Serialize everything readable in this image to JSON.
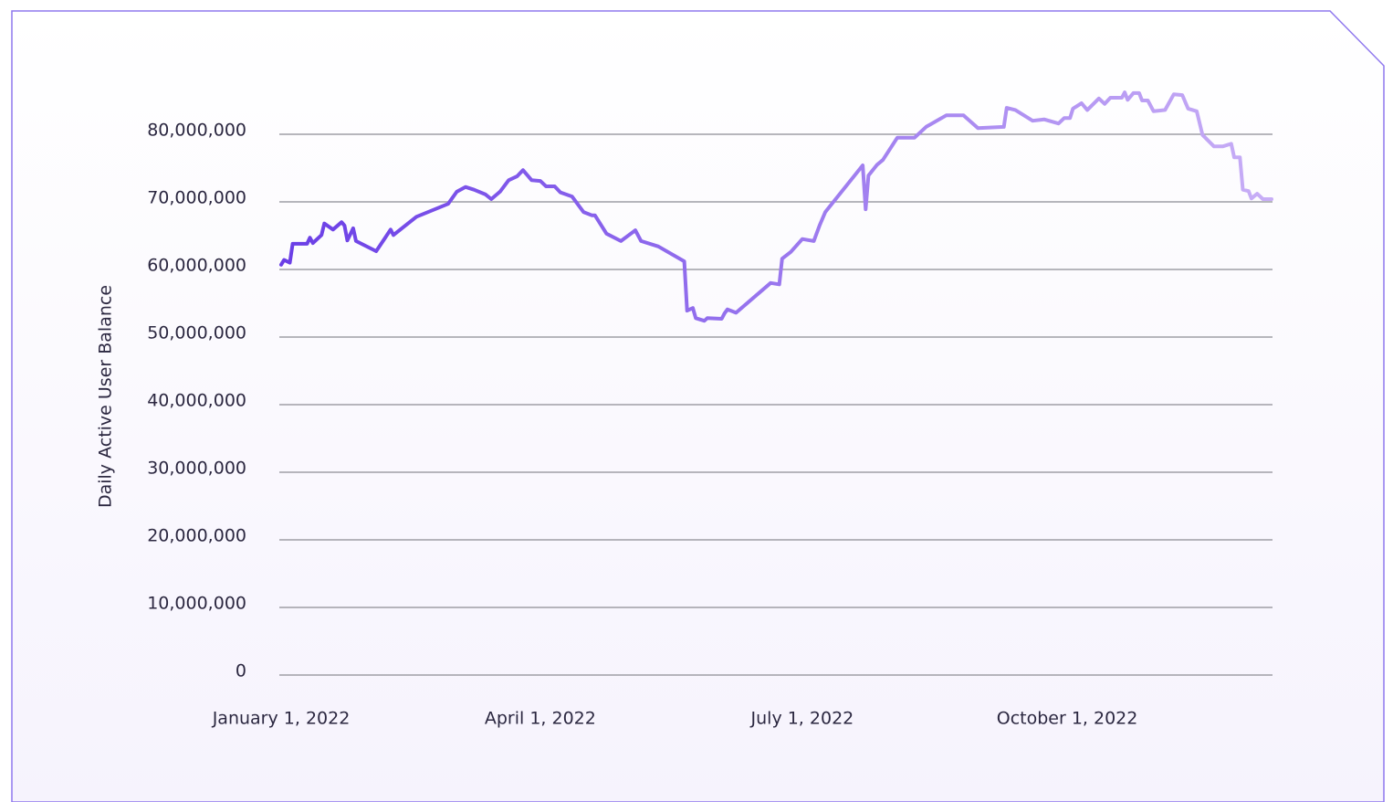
{
  "chart_data": {
    "type": "line",
    "y_label": "Daily Active User Balance",
    "x": [
      "2022-01-01",
      "2022-01-02",
      "2022-01-04",
      "2022-01-05",
      "2022-01-10",
      "2022-01-11",
      "2022-01-12",
      "2022-01-15",
      "2022-01-16",
      "2022-01-19",
      "2022-01-22",
      "2022-01-23",
      "2022-01-24",
      "2022-01-26",
      "2022-01-27",
      "2022-02-03",
      "2022-02-06",
      "2022-02-08",
      "2022-02-09",
      "2022-02-17",
      "2022-02-28",
      "2022-03-03",
      "2022-03-06",
      "2022-03-09",
      "2022-03-13",
      "2022-03-15",
      "2022-03-18",
      "2022-03-21",
      "2022-03-24",
      "2022-03-26",
      "2022-03-29",
      "2022-04-01",
      "2022-04-03",
      "2022-04-06",
      "2022-04-08",
      "2022-04-12",
      "2022-04-16",
      "2022-04-19",
      "2022-04-20",
      "2022-04-24",
      "2022-04-29",
      "2022-05-04",
      "2022-05-06",
      "2022-05-12",
      "2022-05-21",
      "2022-05-22",
      "2022-05-24",
      "2022-05-25",
      "2022-05-28",
      "2022-05-29",
      "2022-06-03",
      "2022-06-04",
      "2022-06-05",
      "2022-06-08",
      "2022-06-20",
      "2022-06-23",
      "2022-06-24",
      "2022-06-27",
      "2022-07-01",
      "2022-07-05",
      "2022-07-07",
      "2022-07-09",
      "2022-07-22",
      "2022-07-23",
      "2022-07-24",
      "2022-07-27",
      "2022-07-29",
      "2022-08-03",
      "2022-08-09",
      "2022-08-13",
      "2022-08-20",
      "2022-08-26",
      "2022-08-31",
      "2022-09-09",
      "2022-09-10",
      "2022-09-13",
      "2022-09-19",
      "2022-09-23",
      "2022-09-28",
      "2022-09-30",
      "2022-10-02",
      "2022-10-03",
      "2022-10-06",
      "2022-10-08",
      "2022-10-12",
      "2022-10-14",
      "2022-10-16",
      "2022-10-20",
      "2022-10-21",
      "2022-10-22",
      "2022-10-24",
      "2022-10-26",
      "2022-10-27",
      "2022-10-29",
      "2022-10-31",
      "2022-11-04",
      "2022-11-07",
      "2022-11-10",
      "2022-11-12",
      "2022-11-15",
      "2022-11-17",
      "2022-11-21",
      "2022-11-24",
      "2022-11-27",
      "2022-11-28",
      "2022-11-30",
      "2022-12-01",
      "2022-12-03",
      "2022-12-04",
      "2022-12-06",
      "2022-12-08",
      "2022-12-11"
    ],
    "series": [
      {
        "color": "#6a3ee6",
        "gradient_end": "#c8aef6",
        "values": [
          60700000,
          61400000,
          61000000,
          63800000,
          63800000,
          64700000,
          63900000,
          65100000,
          66800000,
          65900000,
          67000000,
          66500000,
          64300000,
          66100000,
          64200000,
          62700000,
          64600000,
          65900000,
          65100000,
          67800000,
          69700000,
          71500000,
          72200000,
          71800000,
          71100000,
          70400000,
          71500000,
          73200000,
          73800000,
          74700000,
          73200000,
          73100000,
          72300000,
          72300000,
          71400000,
          70800000,
          68500000,
          68000000,
          68000000,
          65300000,
          64200000,
          65800000,
          64200000,
          63400000,
          61200000,
          53900000,
          54300000,
          52800000,
          52400000,
          52800000,
          52700000,
          53500000,
          54100000,
          53600000,
          58000000,
          57800000,
          61600000,
          62600000,
          64500000,
          64200000,
          66500000,
          68500000,
          75400000,
          68900000,
          73900000,
          75500000,
          76200000,
          79500000,
          79500000,
          81100000,
          82800000,
          82800000,
          80900000,
          81100000,
          83900000,
          83600000,
          82000000,
          82200000,
          81600000,
          82400000,
          82400000,
          83800000,
          84600000,
          83600000,
          85300000,
          84500000,
          85400000,
          85400000,
          86200000,
          85100000,
          86100000,
          86100000,
          85000000,
          85000000,
          83400000,
          83600000,
          85900000,
          85800000,
          83800000,
          83400000,
          79900000,
          78200000,
          78200000,
          78600000,
          76600000,
          76600000,
          71800000,
          71600000,
          70500000,
          71200000,
          70400000,
          70400000
        ]
      }
    ],
    "xlim": [
      "2022-01-01",
      "2022-12-11"
    ],
    "xticks": [
      {
        "value": "2022-01-01",
        "label": "January 1, 2022"
      },
      {
        "value": "2022-04-01",
        "label": "April 1, 2022"
      },
      {
        "value": "2022-07-01",
        "label": "July 1, 2022"
      },
      {
        "value": "2022-10-01",
        "label": "October 1, 2022"
      }
    ],
    "ylim": [
      0,
      90000000
    ],
    "yticks": [
      0,
      {
        "value": 10000000,
        "label": "10,000,000"
      },
      {
        "value": 20000000,
        "label": "20,000,000"
      },
      {
        "value": 30000000,
        "label": "30,000,000"
      },
      {
        "value": 40000000,
        "label": "40,000,000"
      },
      {
        "value": 50000000,
        "label": "50,000,000"
      },
      {
        "value": 60000000,
        "label": "60,000,000"
      },
      {
        "value": 70000000,
        "label": "70,000,000"
      },
      {
        "value": 80000000,
        "label": "80,000,000"
      }
    ],
    "grid": true
  }
}
